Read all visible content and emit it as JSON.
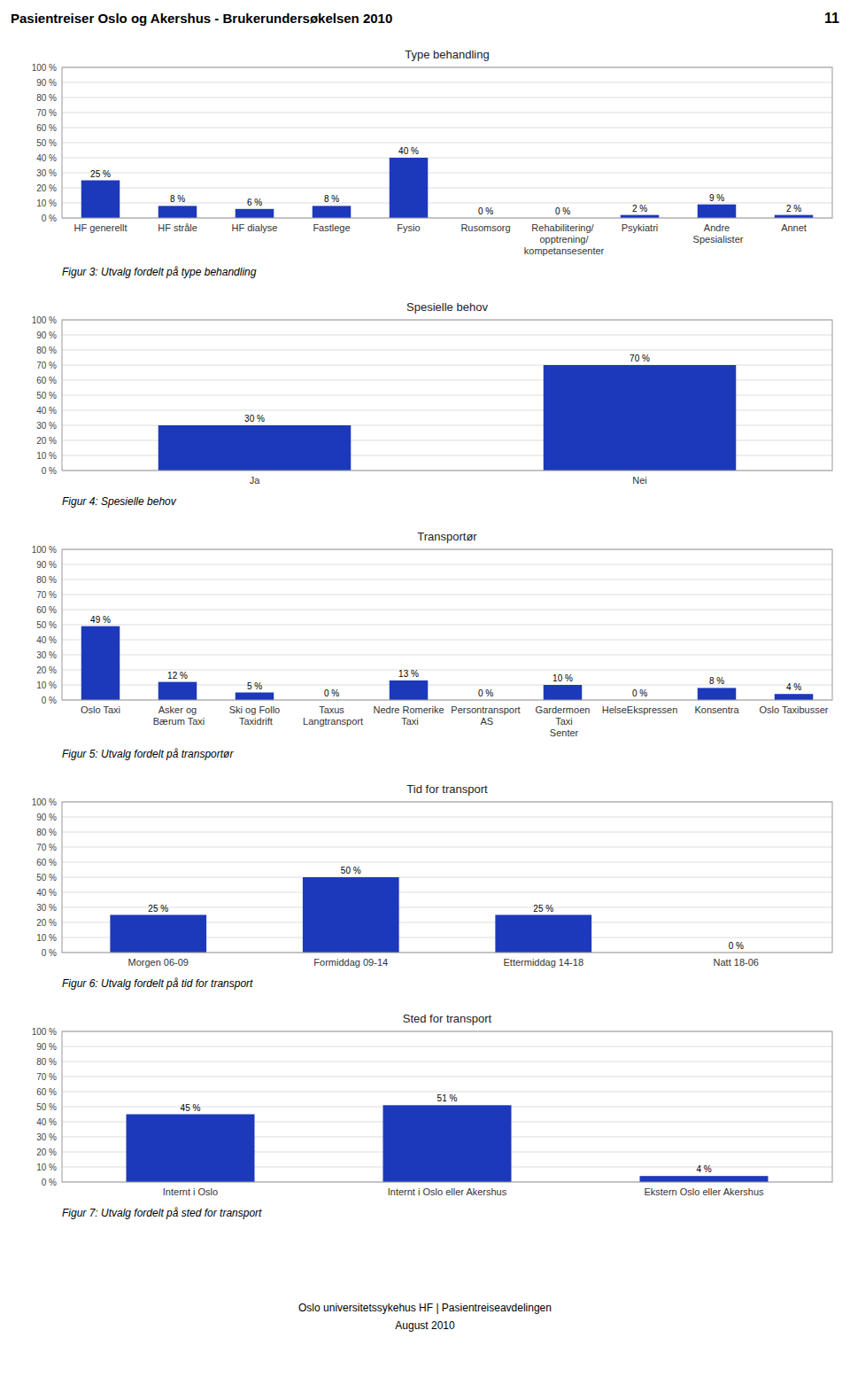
{
  "title": "Pasientreiser Oslo og Akershus - Brukerundersøkelsen 2010",
  "page_number": "11",
  "footer": [
    "Oslo universitetssykehus HF  |  Pasientreiseavdelingen",
    "August 2010"
  ],
  "chart_data": [
    {
      "type": "bar",
      "title": "Type behandling",
      "categories": [
        "HF generellt",
        "HF stråle",
        "HF dialyse",
        "Fastlege",
        "Fysio",
        "Rusomsorg",
        "Rehabilitering/\nopptrening/\nkompetansesenter",
        "Psykiatri",
        "Andre Spesialister",
        "Annet"
      ],
      "values": [
        25,
        8,
        6,
        8,
        40,
        0,
        0,
        2,
        9,
        2
      ],
      "value_labels": [
        "25 %",
        "8 %",
        "6 %",
        "8 %",
        "40 %",
        "0 %",
        "0 %",
        "2 %",
        "9 %",
        "2 %"
      ],
      "color": "#1C39BB",
      "ylim": [
        0,
        100
      ],
      "yticks": [
        {
          "value": 0,
          "label": "0 %"
        },
        {
          "value": 10,
          "label": "10 %"
        },
        {
          "value": 20,
          "label": "20 %"
        },
        {
          "value": 30,
          "label": "30 %"
        },
        {
          "value": 40,
          "label": "40 %"
        },
        {
          "value": 50,
          "label": "50 %"
        },
        {
          "value": 60,
          "label": "60 %"
        },
        {
          "value": 70,
          "label": "70 %"
        },
        {
          "value": 80,
          "label": "80 %"
        },
        {
          "value": 90,
          "label": "90 %"
        },
        {
          "value": 100,
          "label": "100 %"
        }
      ],
      "grid": true,
      "data_labels": true,
      "caption": "Figur 3: Utvalg fordelt på type behandling"
    },
    {
      "type": "bar",
      "title": "Spesielle behov",
      "categories": [
        "Ja",
        "Nei"
      ],
      "values": [
        30,
        70
      ],
      "value_labels": [
        "30 %",
        "70 %"
      ],
      "color": "#1C39BB",
      "ylim": [
        0,
        100
      ],
      "yticks": [
        {
          "value": 0,
          "label": "0 %"
        },
        {
          "value": 10,
          "label": "10 %"
        },
        {
          "value": 20,
          "label": "20 %"
        },
        {
          "value": 30,
          "label": "30 %"
        },
        {
          "value": 40,
          "label": "40 %"
        },
        {
          "value": 50,
          "label": "50 %"
        },
        {
          "value": 60,
          "label": "60 %"
        },
        {
          "value": 70,
          "label": "70 %"
        },
        {
          "value": 80,
          "label": "80 %"
        },
        {
          "value": 90,
          "label": "90 %"
        },
        {
          "value": 100,
          "label": "100 %"
        }
      ],
      "grid": true,
      "data_labels": true,
      "caption": "Figur 4: Spesielle behov"
    },
    {
      "type": "bar",
      "title": "Transportør",
      "categories": [
        "Oslo Taxi",
        "Asker og Bærum Taxi",
        "Ski og Follo Taxidrift",
        "Taxus Langtransport",
        "Nedre Romerike Taxi",
        "Persontransport AS",
        "Gardermoen Taxi\nSenter",
        "HelseEkspressen",
        "Konsentra",
        "Oslo Taxibusser"
      ],
      "values": [
        49,
        12,
        5,
        0,
        13,
        0,
        10,
        0,
        8,
        4
      ],
      "value_labels": [
        "49 %",
        "12 %",
        "5 %",
        "0 %",
        "13 %",
        "0 %",
        "10 %",
        "0 %",
        "8 %",
        "4 %"
      ],
      "color": "#1C39BB",
      "ylim": [
        0,
        100
      ],
      "yticks": [
        {
          "value": 0,
          "label": "0 %"
        },
        {
          "value": 10,
          "label": "10 %"
        },
        {
          "value": 20,
          "label": "20 %"
        },
        {
          "value": 30,
          "label": "30 %"
        },
        {
          "value": 40,
          "label": "40 %"
        },
        {
          "value": 50,
          "label": "50 %"
        },
        {
          "value": 60,
          "label": "60 %"
        },
        {
          "value": 70,
          "label": "70 %"
        },
        {
          "value": 80,
          "label": "80 %"
        },
        {
          "value": 90,
          "label": "90 %"
        },
        {
          "value": 100,
          "label": "100 %"
        }
      ],
      "grid": true,
      "data_labels": true,
      "caption": "Figur 5: Utvalg fordelt på transportør"
    },
    {
      "type": "bar",
      "title": "Tid for transport",
      "categories": [
        "Morgen 06-09",
        "Formiddag 09-14",
        "Ettermiddag 14-18",
        "Natt 18-06"
      ],
      "values": [
        25,
        50,
        25,
        0
      ],
      "value_labels": [
        "25 %",
        "50 %",
        "25 %",
        "0 %"
      ],
      "color": "#1C39BB",
      "ylim": [
        0,
        100
      ],
      "yticks": [
        {
          "value": 0,
          "label": "0 %"
        },
        {
          "value": 10,
          "label": "10 %"
        },
        {
          "value": 20,
          "label": "20 %"
        },
        {
          "value": 30,
          "label": "30 %"
        },
        {
          "value": 40,
          "label": "40 %"
        },
        {
          "value": 50,
          "label": "50 %"
        },
        {
          "value": 60,
          "label": "60 %"
        },
        {
          "value": 70,
          "label": "70 %"
        },
        {
          "value": 80,
          "label": "80 %"
        },
        {
          "value": 90,
          "label": "90 %"
        },
        {
          "value": 100,
          "label": "100 %"
        }
      ],
      "grid": true,
      "data_labels": true,
      "caption": "Figur 6: Utvalg fordelt på tid for transport"
    },
    {
      "type": "bar",
      "title": "Sted for transport",
      "categories": [
        "Internt i Oslo",
        "Internt i Oslo eller Akershus",
        "Ekstern Oslo eller Akershus"
      ],
      "values": [
        45,
        51,
        4
      ],
      "value_labels": [
        "45 %",
        "51 %",
        "4 %"
      ],
      "color": "#1C39BB",
      "ylim": [
        0,
        100
      ],
      "yticks": [
        {
          "value": 0,
          "label": "0 %"
        },
        {
          "value": 10,
          "label": "10 %"
        },
        {
          "value": 20,
          "label": "20 %"
        },
        {
          "value": 30,
          "label": "30 %"
        },
        {
          "value": 40,
          "label": "40 %"
        },
        {
          "value": 50,
          "label": "50 %"
        },
        {
          "value": 60,
          "label": "60 %"
        },
        {
          "value": 70,
          "label": "70 %"
        },
        {
          "value": 80,
          "label": "80 %"
        },
        {
          "value": 90,
          "label": "90 %"
        },
        {
          "value": 100,
          "label": "100 %"
        }
      ],
      "grid": true,
      "data_labels": true,
      "caption": "Figur 7: Utvalg fordelt på sted for transport"
    }
  ]
}
